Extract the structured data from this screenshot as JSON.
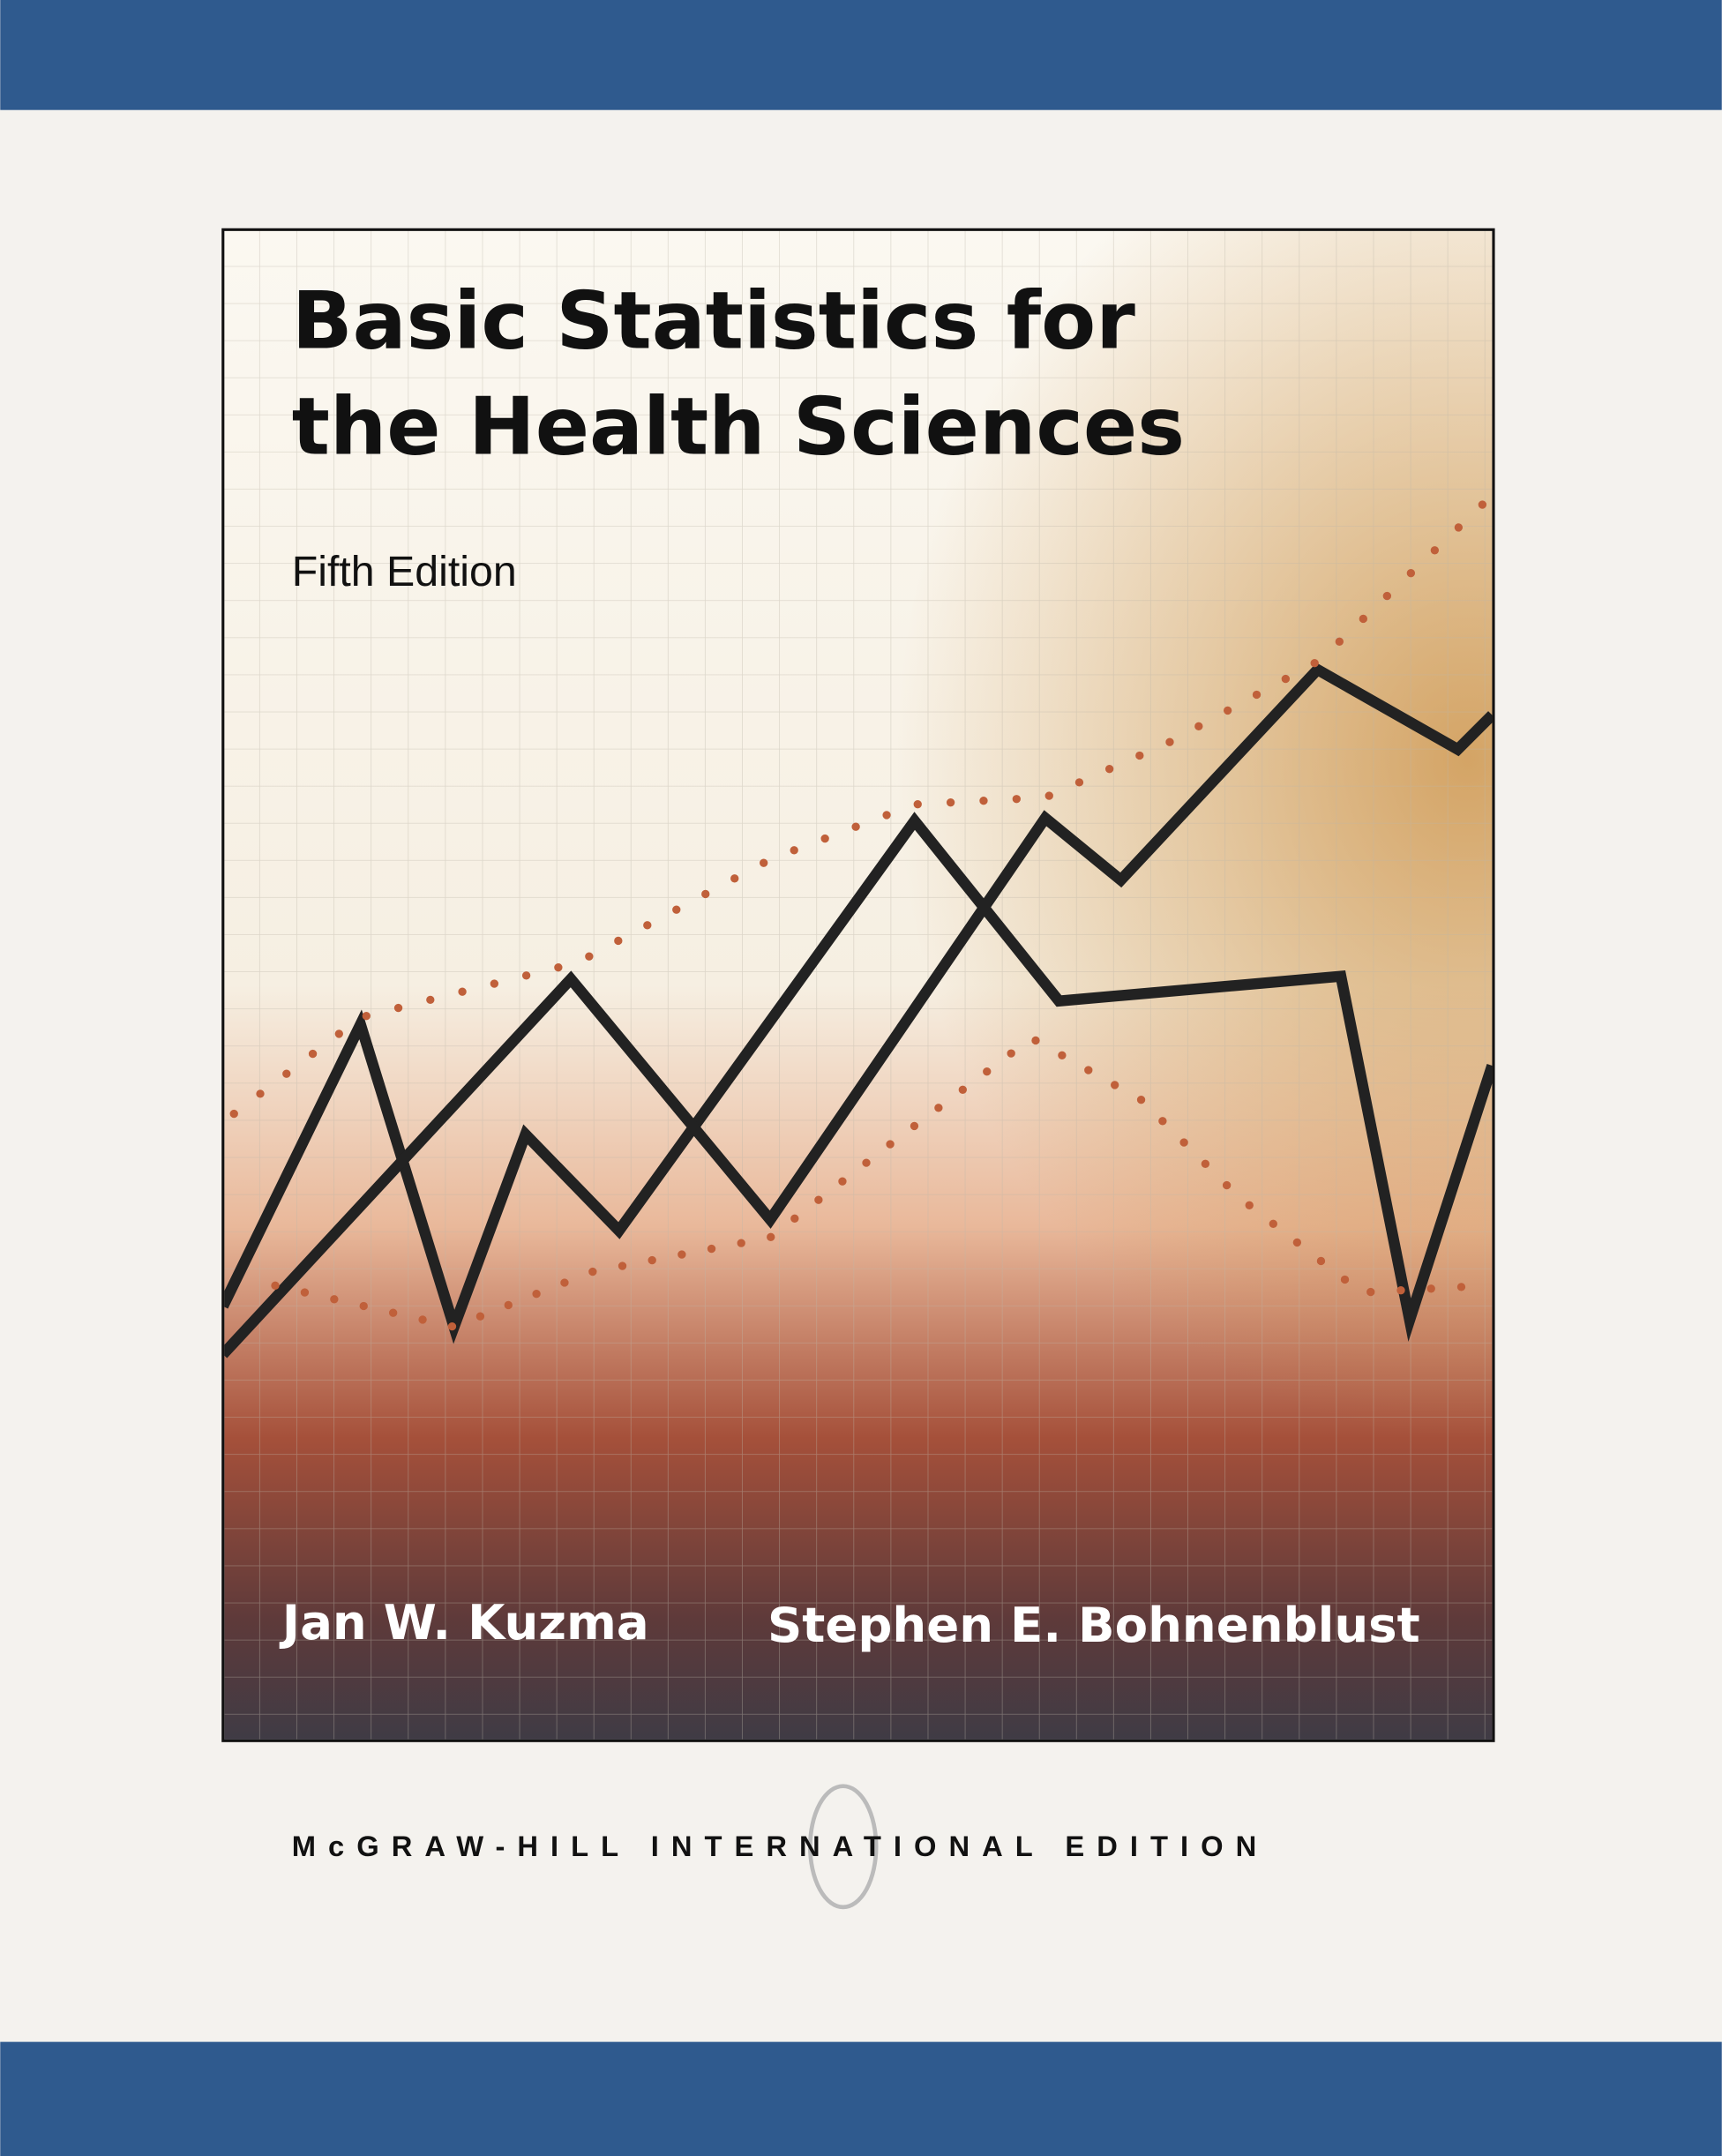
{
  "cover": {
    "title_lines": [
      "Basic Statistics for",
      "the Health Sciences"
    ],
    "edition": "Fifth Edition",
    "authors": [
      "Jan W. Kuzma",
      "Stephen E. Bohnenblust"
    ],
    "publisher": "McGRAW-HILL INTERNATIONAL EDITION"
  }
}
